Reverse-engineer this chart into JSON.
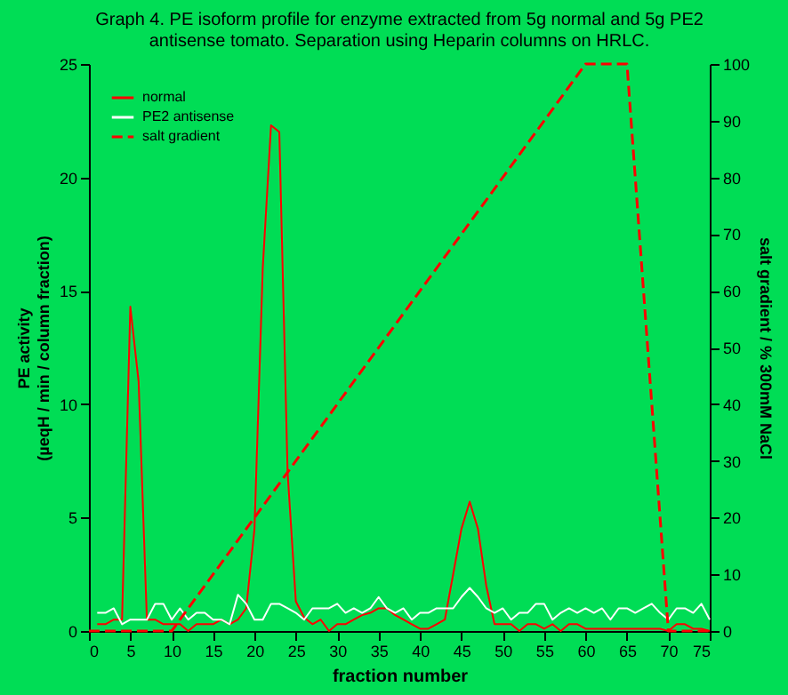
{
  "chart_data": {
    "type": "line",
    "title": "Graph 4. PE isoform profile for enzyme extracted from 5g normal and 5g PE2\nantisense tomato. Separation using Heparin columns on HRLC.",
    "xlabel": "fraction number",
    "ylabel": "PE activity\n(µeqH  / min / column fraction)",
    "y2label": "salt gradient / % 300mM NaCl",
    "x": [
      1,
      2,
      3,
      4,
      5,
      6,
      7,
      8,
      9,
      10,
      11,
      12,
      13,
      14,
      15,
      16,
      17,
      18,
      19,
      20,
      21,
      22,
      23,
      24,
      25,
      26,
      27,
      28,
      29,
      30,
      31,
      32,
      33,
      34,
      35,
      36,
      37,
      38,
      39,
      40,
      41,
      42,
      43,
      44,
      45,
      46,
      47,
      48,
      49,
      50,
      51,
      52,
      53,
      54,
      55,
      56,
      57,
      58,
      59,
      60,
      61,
      62,
      63,
      64,
      65,
      66,
      67,
      68,
      69,
      70,
      71,
      72,
      73,
      74,
      75
    ],
    "series": [
      {
        "name": "normal",
        "color": "#ff0000",
        "line_style": "solid",
        "values": [
          0.3,
          0.3,
          0.5,
          0.5,
          14.3,
          11,
          0.5,
          0.5,
          0.3,
          0.3,
          0.3,
          0,
          0.3,
          0.3,
          0.3,
          0.5,
          0.3,
          0.5,
          1.0,
          4.5,
          16,
          22.3,
          22,
          7,
          1.3,
          0.6,
          0.3,
          0.5,
          0,
          0.3,
          0.3,
          0.5,
          0.7,
          0.8,
          1.0,
          1.0,
          0.7,
          0.5,
          0.3,
          0.1,
          0.1,
          0.3,
          0.5,
          2.5,
          4.5,
          5.7,
          4.5,
          2,
          0.3,
          0.3,
          0.3,
          0,
          0.3,
          0.3,
          0.1,
          0.3,
          0,
          0.3,
          0.3,
          0.1,
          0.1,
          0.1,
          0.1,
          0.1,
          0.1,
          0.1,
          0.1,
          0.1,
          0.1,
          0,
          0.3,
          0.3,
          0.1,
          0.1,
          0
        ]
      },
      {
        "name": "PE2 antisense",
        "color": "#ffffff",
        "line_style": "solid",
        "values": [
          0.8,
          0.8,
          1.0,
          0.3,
          0.5,
          0.5,
          0.5,
          1.2,
          1.2,
          0.5,
          1.0,
          0.5,
          0.8,
          0.8,
          0.5,
          0.5,
          0.3,
          1.6,
          1.2,
          0.5,
          0.5,
          1.2,
          1.2,
          1.0,
          0.8,
          0.5,
          1.0,
          1.0,
          1.0,
          1.2,
          0.8,
          1.0,
          0.8,
          1.0,
          1.5,
          1.0,
          0.8,
          1.0,
          0.5,
          0.8,
          0.8,
          1.0,
          1.0,
          1.0,
          1.5,
          1.9,
          1.5,
          1.0,
          0.8,
          1.0,
          0.5,
          0.8,
          0.8,
          1.2,
          1.2,
          0.5,
          0.8,
          1.0,
          0.8,
          1.0,
          0.8,
          1.0,
          0.5,
          1.0,
          1.0,
          0.8,
          1.0,
          1.2,
          0.8,
          0.5,
          1.0,
          1.0,
          0.8,
          1.2,
          0.5
        ]
      },
      {
        "name": "salt gradient",
        "color": "#ff0000",
        "line_style": "dashed",
        "axis": "y2",
        "x": [
          0,
          10,
          60,
          65,
          70,
          75
        ],
        "values": [
          0,
          0,
          100,
          100,
          0,
          0
        ]
      }
    ],
    "xlim": [
      0,
      75
    ],
    "xticks": [
      0,
      5,
      10,
      15,
      20,
      25,
      30,
      35,
      40,
      45,
      50,
      55,
      60,
      65,
      70,
      75
    ],
    "ylim": [
      0,
      25
    ],
    "yticks": [
      0,
      5,
      10,
      15,
      20,
      25
    ],
    "y2lim": [
      0,
      100
    ],
    "y2ticks": [
      0,
      10,
      20,
      30,
      40,
      50,
      60,
      70,
      80,
      90,
      100
    ],
    "legend": "top left",
    "grid": false,
    "marker": "none"
  }
}
